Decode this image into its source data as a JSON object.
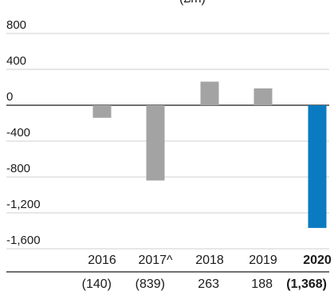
{
  "chart_data": {
    "type": "bar",
    "title_fragment": "(£m)",
    "categories": [
      "2016",
      "2017^",
      "2018",
      "2019",
      "2020"
    ],
    "values": [
      -140,
      -839,
      263,
      188,
      -1368
    ],
    "value_labels": [
      "(140)",
      "(839)",
      "263",
      "188",
      "(1,368)"
    ],
    "highlight_index": 4,
    "yticks": [
      800,
      400,
      0,
      -400,
      -800,
      -1200,
      -1600
    ],
    "ytick_labels": [
      "800",
      "400",
      "0",
      "-400",
      "-800",
      "-1,200",
      "-1,600"
    ],
    "ylim": [
      -1600,
      800
    ],
    "grid": true,
    "colors": {
      "bar": "#a3a3a3",
      "highlight": "#0a7bc1",
      "grid": "#cfcfcf",
      "axis": "#1a1a1a"
    }
  }
}
